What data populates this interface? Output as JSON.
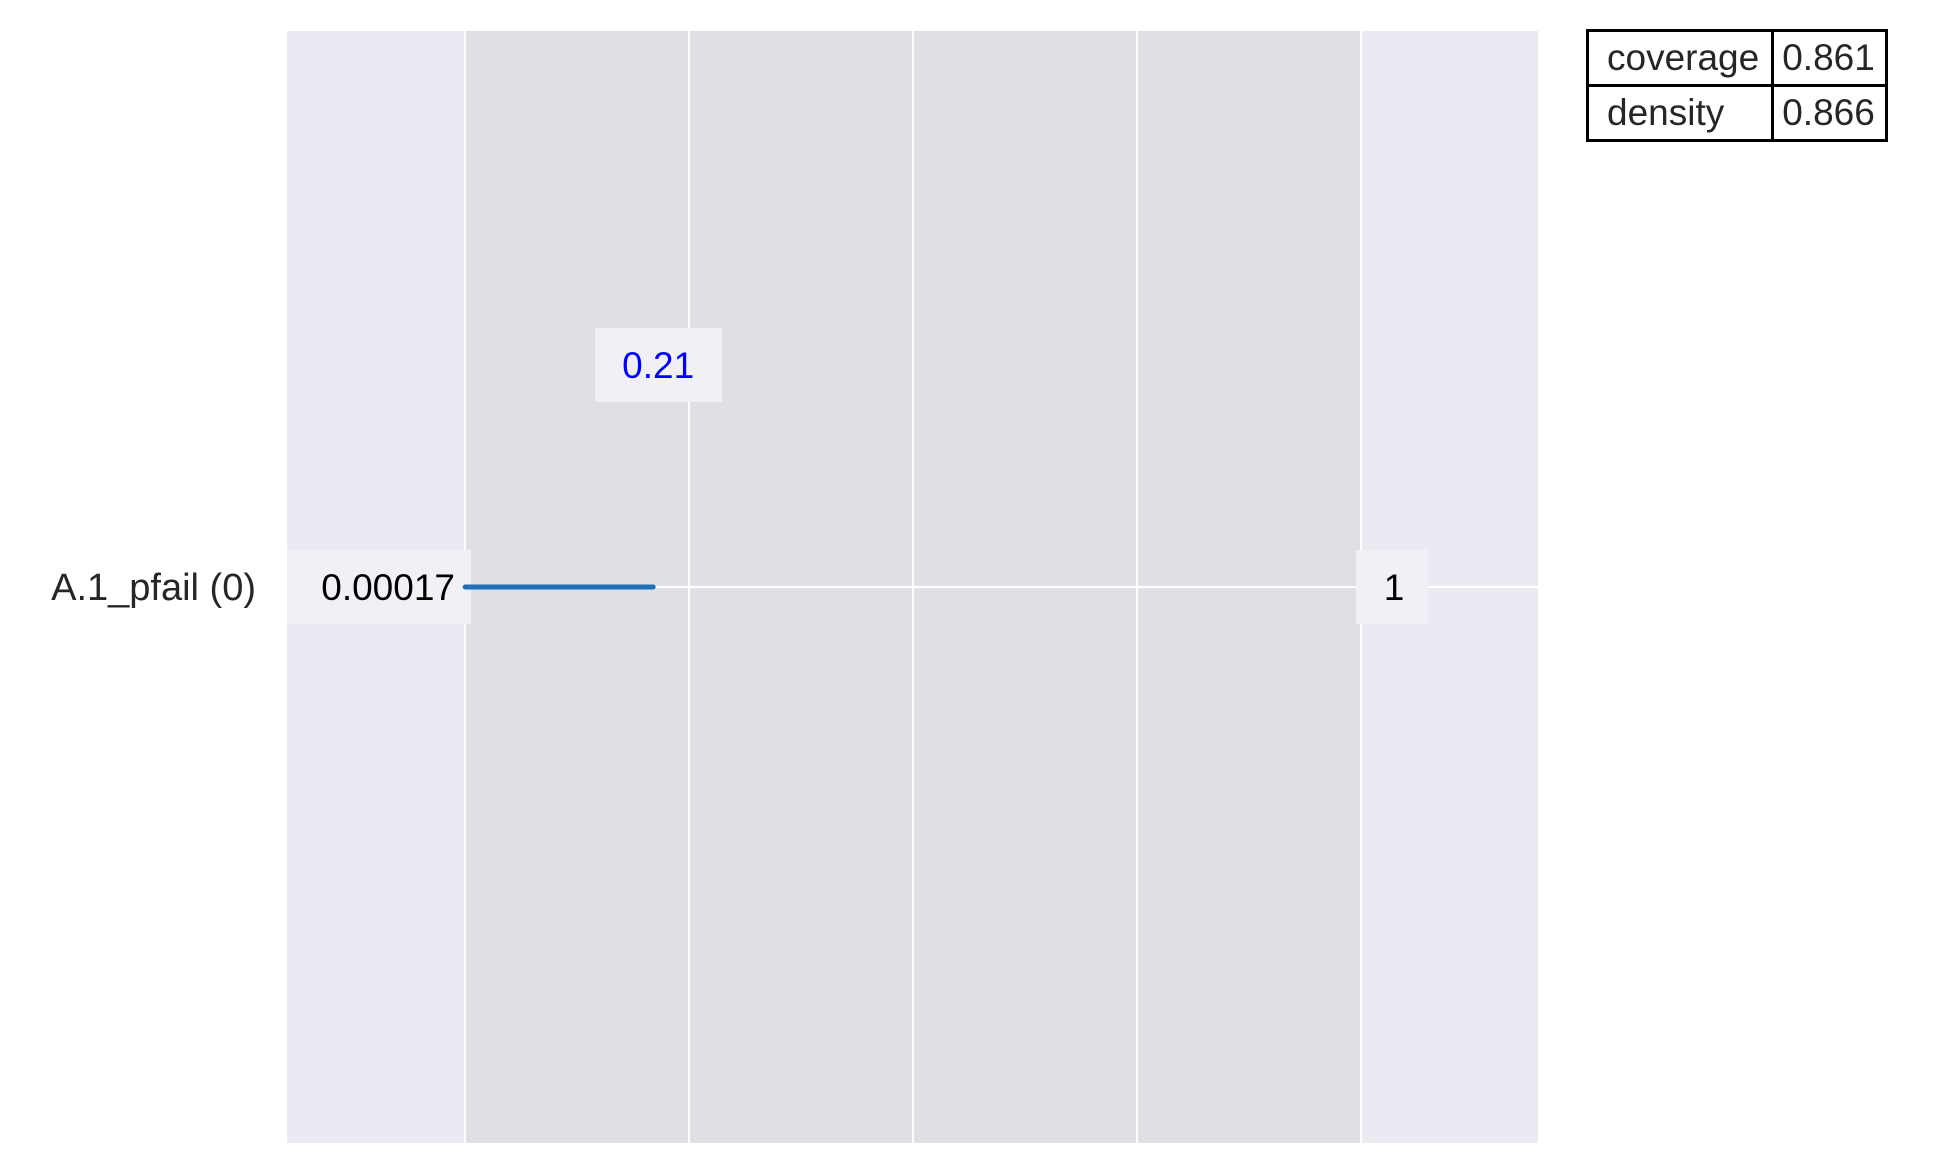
{
  "chart_data": {
    "type": "box_limits",
    "x_range": [
      0,
      1
    ],
    "grid": true,
    "restricted_box": [
      0,
      1
    ],
    "rows": [
      {
        "label": "A.1_pfail (0)",
        "min_label": "0.00017",
        "max_label": "1",
        "box_lower": 0.00017,
        "box_upper": 0.21,
        "box_upper_label": "0.21"
      }
    ]
  },
  "stats": [
    {
      "name": "coverage",
      "value": "0.861"
    },
    {
      "name": "density",
      "value": "0.866"
    }
  ],
  "colors": {
    "plot_background": "#eaeaf2",
    "restricted_region": "#e0dfe5",
    "grid": "#ffffff",
    "box_line": "#1f6fb4",
    "upper_label": "#0000ff",
    "text": "#262626",
    "label_box": "#f1f1f5"
  }
}
